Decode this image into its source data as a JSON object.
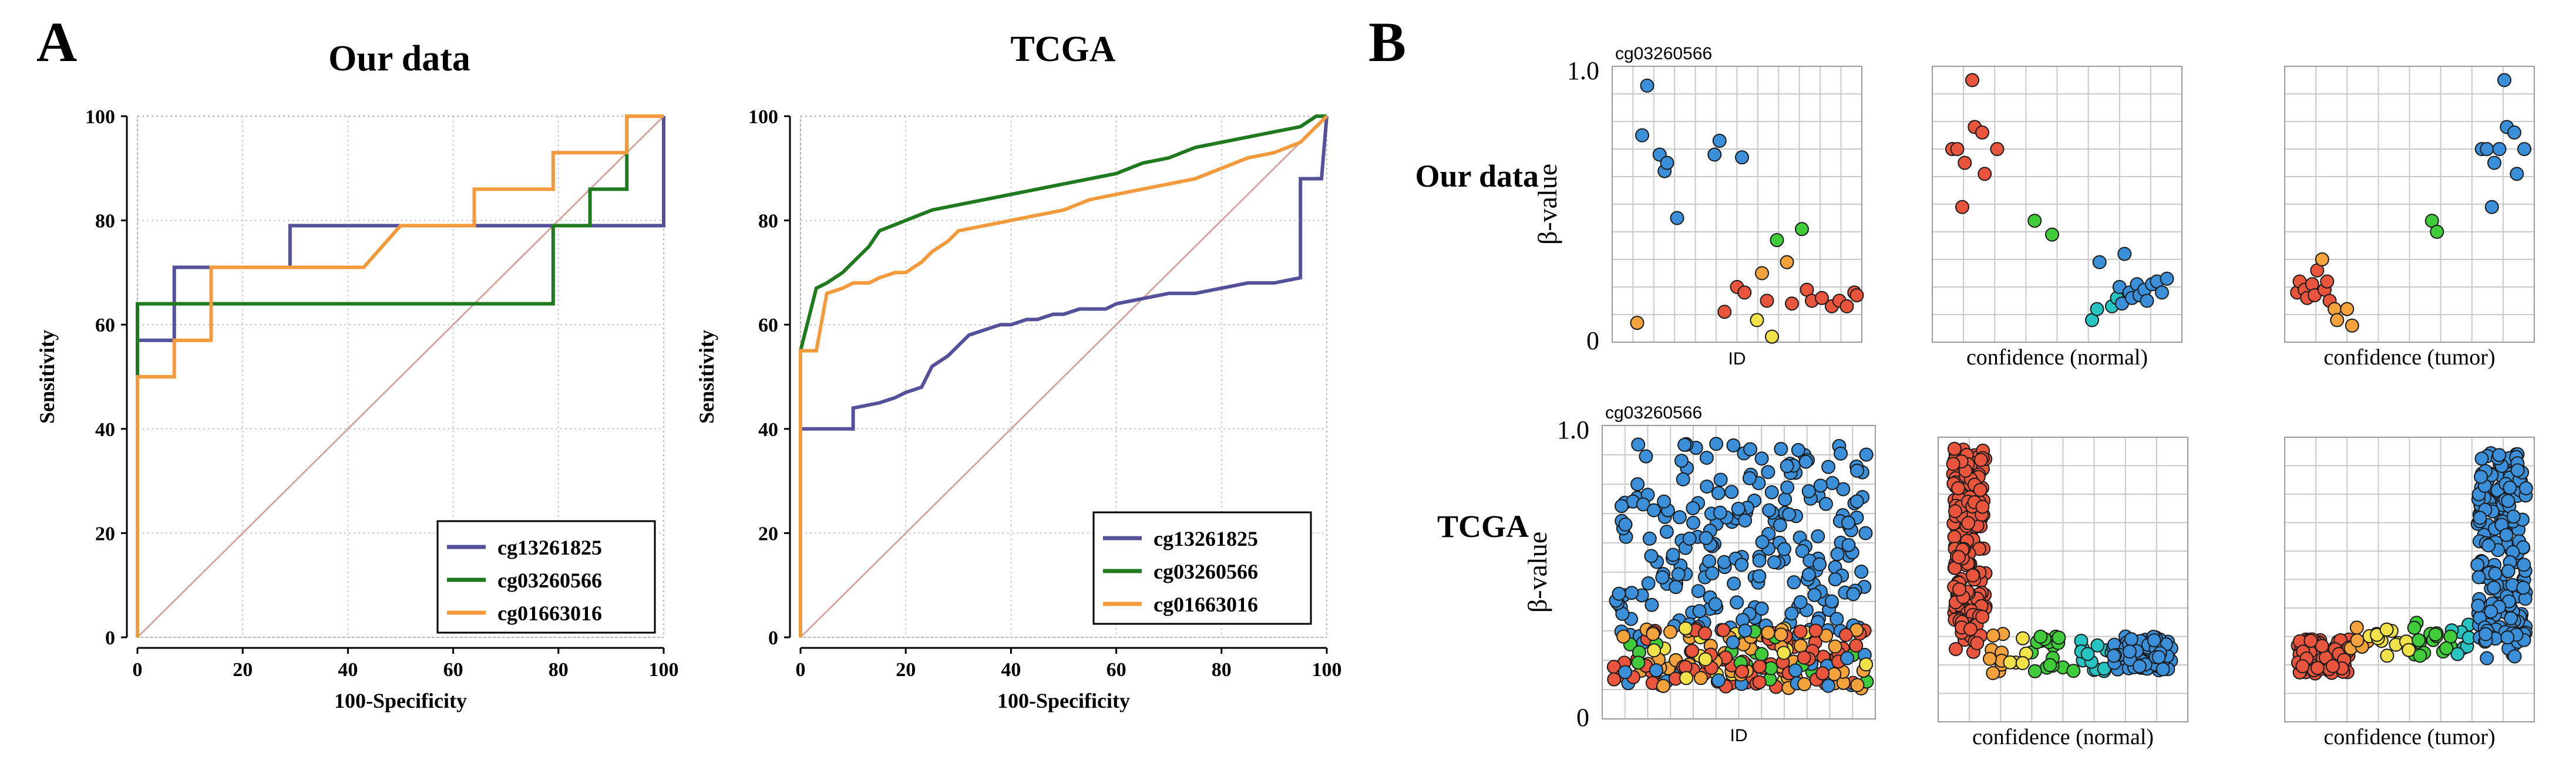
{
  "panels": {
    "A": {
      "label": "A"
    },
    "B": {
      "label": "B"
    }
  },
  "colors": {
    "cg13261825": "#54509a",
    "cg03260566": "#1f7a1f",
    "cg01663016": "#f39a3c",
    "diagonal": "#d4a7a0",
    "grid": "#c8c8c8",
    "blue_point": "#3a8fd8",
    "red_point": "#e8553c",
    "orange_point": "#f3a23c",
    "yellow_point": "#f2e24a",
    "green_point": "#3fcb3a",
    "cyan_point": "#27c3c0"
  },
  "chart_data": [
    {
      "id": "roc-our-data",
      "type": "line",
      "title": "Our data",
      "xlabel": "100-Specificity",
      "ylabel": "Sensitivity",
      "xlim": [
        0,
        100
      ],
      "ylim": [
        0,
        100
      ],
      "xticks": [
        "0",
        "20",
        "40",
        "60",
        "80",
        "100"
      ],
      "yticks": [
        "0",
        "20",
        "40",
        "60",
        "80",
        "100"
      ],
      "legend_position": "bottom-right",
      "reference_line": true,
      "series": [
        {
          "name": "cg13261825",
          "x": [
            0,
            0,
            7,
            7,
            29,
            29,
            100,
            100
          ],
          "y": [
            0,
            57,
            57,
            71,
            71,
            79,
            79,
            100
          ]
        },
        {
          "name": "cg03260566",
          "x": [
            0,
            0,
            79,
            79,
            86,
            86,
            93,
            93,
            100
          ],
          "y": [
            0,
            64,
            64,
            79,
            79,
            86,
            86,
            100,
            100
          ]
        },
        {
          "name": "cg01663016",
          "x": [
            0,
            0,
            7,
            7,
            14,
            14,
            43,
            50,
            64,
            64,
            79,
            79,
            93,
            93,
            100
          ],
          "y": [
            0,
            50,
            50,
            57,
            57,
            71,
            71,
            79,
            79,
            86,
            86,
            93,
            93,
            100,
            100
          ]
        }
      ]
    },
    {
      "id": "roc-tcga",
      "type": "line",
      "title": "TCGA",
      "xlabel": "100-Specificity",
      "ylabel": "Sensitivity",
      "xlim": [
        0,
        100
      ],
      "ylim": [
        0,
        100
      ],
      "xticks": [
        "0",
        "20",
        "40",
        "60",
        "80",
        "100"
      ],
      "yticks": [
        "0",
        "20",
        "40",
        "60",
        "80",
        "100"
      ],
      "legend_position": "bottom-right",
      "reference_line": true,
      "series": [
        {
          "name": "cg13261825",
          "x": [
            0,
            0,
            10,
            10,
            15,
            18,
            20,
            23,
            25,
            28,
            30,
            32,
            35,
            38,
            40,
            43,
            45,
            48,
            50,
            53,
            55,
            58,
            60,
            65,
            70,
            75,
            80,
            85,
            90,
            95,
            95,
            99,
            100
          ],
          "y": [
            0,
            40,
            40,
            44,
            45,
            46,
            47,
            48,
            52,
            54,
            56,
            58,
            59,
            60,
            60,
            61,
            61,
            62,
            62,
            63,
            63,
            63,
            64,
            65,
            66,
            66,
            67,
            68,
            68,
            69,
            88,
            88,
            100
          ]
        },
        {
          "name": "cg03260566",
          "x": [
            0,
            0,
            3,
            5,
            8,
            10,
            13,
            15,
            20,
            25,
            30,
            35,
            40,
            45,
            50,
            55,
            60,
            65,
            70,
            75,
            80,
            85,
            90,
            95,
            98,
            100
          ],
          "y": [
            0,
            55,
            67,
            68,
            70,
            72,
            75,
            78,
            80,
            82,
            83,
            84,
            85,
            86,
            87,
            88,
            89,
            91,
            92,
            94,
            95,
            96,
            97,
            98,
            100,
            100
          ]
        },
        {
          "name": "cg01663016",
          "x": [
            0,
            0,
            3,
            5,
            8,
            10,
            13,
            15,
            18,
            20,
            23,
            25,
            28,
            30,
            35,
            40,
            45,
            50,
            55,
            60,
            65,
            70,
            75,
            80,
            85,
            90,
            95,
            100
          ],
          "y": [
            0,
            55,
            55,
            66,
            67,
            68,
            68,
            69,
            70,
            70,
            72,
            74,
            76,
            78,
            79,
            80,
            81,
            82,
            84,
            85,
            86,
            87,
            88,
            90,
            92,
            93,
            95,
            100
          ]
        }
      ]
    },
    {
      "id": "beta-our-id",
      "type": "scatter",
      "title": "cg03260566",
      "row_label": "Our data",
      "xlabel": "ID",
      "ylabel": "β-value",
      "ylim": [
        0,
        1
      ],
      "yticks": [
        "0",
        "1.0"
      ],
      "points": [
        {
          "x": 0.1,
          "y": 0.07,
          "c": "orange"
        },
        {
          "x": 0.12,
          "y": 0.75,
          "c": "blue"
        },
        {
          "x": 0.14,
          "y": 0.93,
          "c": "blue"
        },
        {
          "x": 0.19,
          "y": 0.68,
          "c": "blue"
        },
        {
          "x": 0.21,
          "y": 0.62,
          "c": "blue"
        },
        {
          "x": 0.22,
          "y": 0.65,
          "c": "blue"
        },
        {
          "x": 0.26,
          "y": 0.45,
          "c": "blue"
        },
        {
          "x": 0.41,
          "y": 0.68,
          "c": "blue"
        },
        {
          "x": 0.43,
          "y": 0.73,
          "c": "blue"
        },
        {
          "x": 0.52,
          "y": 0.67,
          "c": "blue"
        },
        {
          "x": 0.45,
          "y": 0.11,
          "c": "red"
        },
        {
          "x": 0.5,
          "y": 0.2,
          "c": "red"
        },
        {
          "x": 0.53,
          "y": 0.18,
          "c": "red"
        },
        {
          "x": 0.58,
          "y": 0.08,
          "c": "yellow"
        },
        {
          "x": 0.6,
          "y": 0.25,
          "c": "orange"
        },
        {
          "x": 0.62,
          "y": 0.15,
          "c": "red"
        },
        {
          "x": 0.64,
          "y": 0.02,
          "c": "yellow"
        },
        {
          "x": 0.66,
          "y": 0.37,
          "c": "green"
        },
        {
          "x": 0.7,
          "y": 0.29,
          "c": "orange"
        },
        {
          "x": 0.72,
          "y": 0.14,
          "c": "red"
        },
        {
          "x": 0.76,
          "y": 0.41,
          "c": "green"
        },
        {
          "x": 0.78,
          "y": 0.19,
          "c": "red"
        },
        {
          "x": 0.8,
          "y": 0.15,
          "c": "red"
        },
        {
          "x": 0.84,
          "y": 0.16,
          "c": "red"
        },
        {
          "x": 0.88,
          "y": 0.13,
          "c": "red"
        },
        {
          "x": 0.91,
          "y": 0.15,
          "c": "red"
        },
        {
          "x": 0.94,
          "y": 0.13,
          "c": "red"
        },
        {
          "x": 0.97,
          "y": 0.18,
          "c": "red"
        },
        {
          "x": 0.98,
          "y": 0.17,
          "c": "red"
        }
      ]
    },
    {
      "id": "beta-our-normal",
      "type": "scatter",
      "xlabel": "confidence (normal)",
      "ylim": [
        0,
        1
      ],
      "points": [
        {
          "x": 0.08,
          "y": 0.7,
          "c": "red"
        },
        {
          "x": 0.1,
          "y": 0.7,
          "c": "red"
        },
        {
          "x": 0.12,
          "y": 0.49,
          "c": "red"
        },
        {
          "x": 0.13,
          "y": 0.65,
          "c": "red"
        },
        {
          "x": 0.16,
          "y": 0.95,
          "c": "red"
        },
        {
          "x": 0.17,
          "y": 0.78,
          "c": "red"
        },
        {
          "x": 0.2,
          "y": 0.76,
          "c": "red"
        },
        {
          "x": 0.21,
          "y": 0.61,
          "c": "red"
        },
        {
          "x": 0.26,
          "y": 0.7,
          "c": "red"
        },
        {
          "x": 0.41,
          "y": 0.44,
          "c": "green"
        },
        {
          "x": 0.48,
          "y": 0.39,
          "c": "green"
        },
        {
          "x": 0.64,
          "y": 0.08,
          "c": "cyan"
        },
        {
          "x": 0.66,
          "y": 0.12,
          "c": "cyan"
        },
        {
          "x": 0.67,
          "y": 0.29,
          "c": "blue"
        },
        {
          "x": 0.72,
          "y": 0.13,
          "c": "cyan"
        },
        {
          "x": 0.74,
          "y": 0.16,
          "c": "cyan"
        },
        {
          "x": 0.75,
          "y": 0.2,
          "c": "blue"
        },
        {
          "x": 0.76,
          "y": 0.14,
          "c": "blue"
        },
        {
          "x": 0.77,
          "y": 0.32,
          "c": "blue"
        },
        {
          "x": 0.79,
          "y": 0.18,
          "c": "blue"
        },
        {
          "x": 0.8,
          "y": 0.16,
          "c": "blue"
        },
        {
          "x": 0.82,
          "y": 0.21,
          "c": "blue"
        },
        {
          "x": 0.83,
          "y": 0.17,
          "c": "blue"
        },
        {
          "x": 0.85,
          "y": 0.19,
          "c": "blue"
        },
        {
          "x": 0.86,
          "y": 0.15,
          "c": "blue"
        },
        {
          "x": 0.88,
          "y": 0.21,
          "c": "blue"
        },
        {
          "x": 0.9,
          "y": 0.22,
          "c": "blue"
        },
        {
          "x": 0.92,
          "y": 0.18,
          "c": "blue"
        },
        {
          "x": 0.94,
          "y": 0.23,
          "c": "blue"
        }
      ]
    },
    {
      "id": "beta-our-tumor",
      "type": "scatter",
      "xlabel": "confidence (tumor)",
      "ylim": [
        0,
        1
      ],
      "points": [
        {
          "x": 0.05,
          "y": 0.18,
          "c": "red"
        },
        {
          "x": 0.06,
          "y": 0.22,
          "c": "red"
        },
        {
          "x": 0.08,
          "y": 0.19,
          "c": "red"
        },
        {
          "x": 0.09,
          "y": 0.16,
          "c": "red"
        },
        {
          "x": 0.11,
          "y": 0.21,
          "c": "red"
        },
        {
          "x": 0.12,
          "y": 0.17,
          "c": "red"
        },
        {
          "x": 0.13,
          "y": 0.26,
          "c": "red"
        },
        {
          "x": 0.15,
          "y": 0.3,
          "c": "orange"
        },
        {
          "x": 0.16,
          "y": 0.19,
          "c": "red"
        },
        {
          "x": 0.17,
          "y": 0.22,
          "c": "red"
        },
        {
          "x": 0.18,
          "y": 0.15,
          "c": "red"
        },
        {
          "x": 0.2,
          "y": 0.12,
          "c": "orange"
        },
        {
          "x": 0.21,
          "y": 0.08,
          "c": "orange"
        },
        {
          "x": 0.25,
          "y": 0.12,
          "c": "orange"
        },
        {
          "x": 0.27,
          "y": 0.06,
          "c": "orange"
        },
        {
          "x": 0.59,
          "y": 0.44,
          "c": "green"
        },
        {
          "x": 0.61,
          "y": 0.4,
          "c": "green"
        },
        {
          "x": 0.79,
          "y": 0.7,
          "c": "blue"
        },
        {
          "x": 0.81,
          "y": 0.7,
          "c": "blue"
        },
        {
          "x": 0.83,
          "y": 0.49,
          "c": "blue"
        },
        {
          "x": 0.84,
          "y": 0.65,
          "c": "blue"
        },
        {
          "x": 0.86,
          "y": 0.7,
          "c": "blue"
        },
        {
          "x": 0.88,
          "y": 0.95,
          "c": "blue"
        },
        {
          "x": 0.89,
          "y": 0.78,
          "c": "blue"
        },
        {
          "x": 0.92,
          "y": 0.76,
          "c": "blue"
        },
        {
          "x": 0.93,
          "y": 0.61,
          "c": "blue"
        },
        {
          "x": 0.96,
          "y": 0.7,
          "c": "blue"
        }
      ]
    },
    {
      "id": "beta-tcga-id",
      "type": "scatter",
      "title": "cg03260566",
      "row_label": "TCGA",
      "xlabel": "ID",
      "ylabel": "β-value",
      "ylim": [
        0,
        1
      ],
      "yticks": [
        "0",
        "1.0"
      ],
      "generated": {
        "kind": "id",
        "seed": 11,
        "blue_count": 230,
        "low_count": 190,
        "blue_range": [
          0.28,
          0.94
        ],
        "low_range": [
          0.1,
          0.31
        ]
      }
    },
    {
      "id": "beta-tcga-normal",
      "type": "scatter",
      "xlabel": "confidence (normal)",
      "ylim": [
        0,
        1
      ],
      "generated": {
        "kind": "normal",
        "seed": 23,
        "red_count": 170,
        "mid_count": 45,
        "blue_count": 70
      }
    },
    {
      "id": "beta-tcga-tumor",
      "type": "scatter",
      "xlabel": "confidence (tumor)",
      "ylim": [
        0,
        1
      ],
      "generated": {
        "kind": "tumor",
        "seed": 37,
        "red_count": 95,
        "mid_count": 40,
        "blue_count": 170
      }
    }
  ]
}
